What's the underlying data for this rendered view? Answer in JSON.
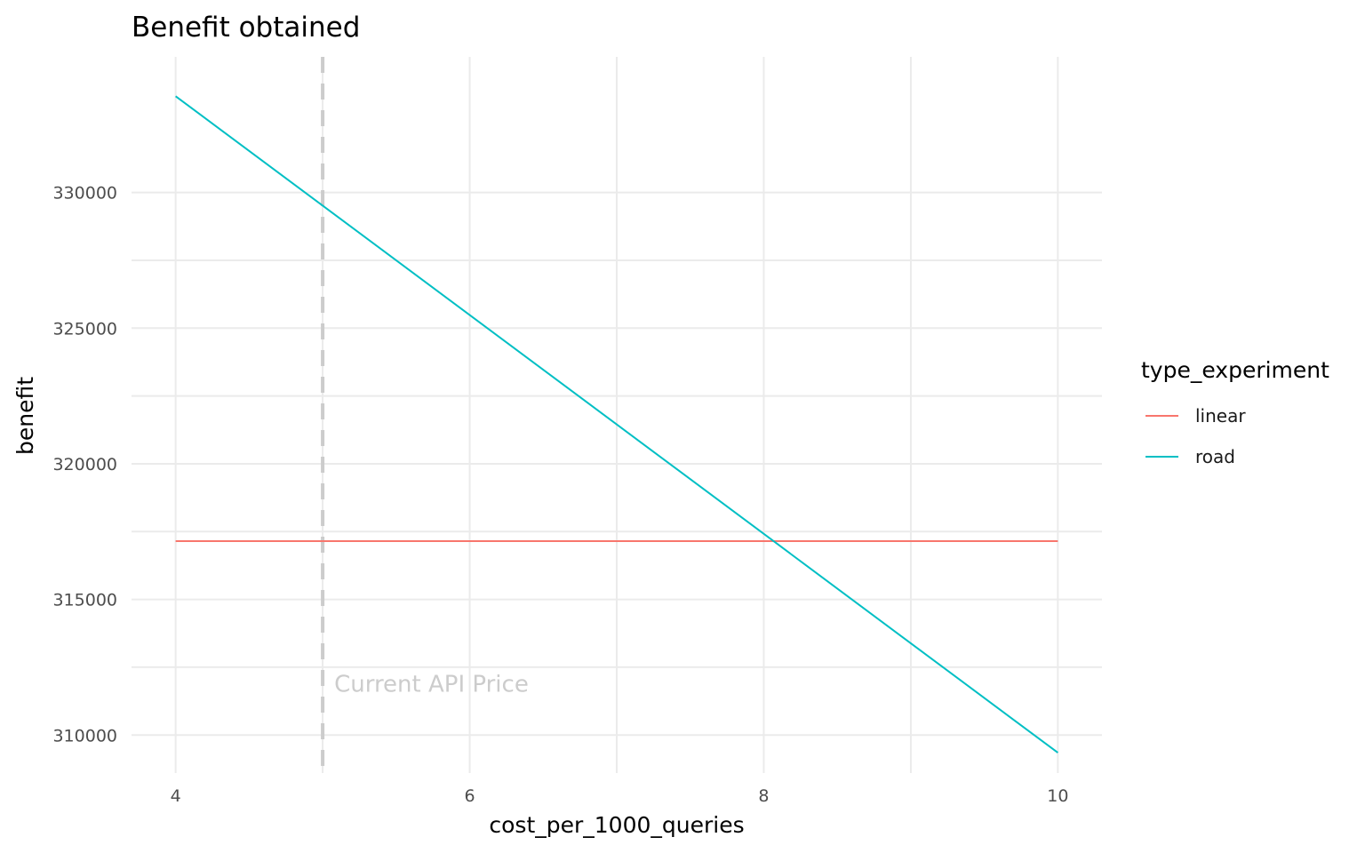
{
  "chart_data": {
    "type": "line",
    "title": "Benefit obtained",
    "xlabel": "cost_per_1000_queries",
    "ylabel": "benefit",
    "xlim": [
      3.7,
      10.3
    ],
    "ylim": [
      308600,
      335000
    ],
    "x_ticks": [
      4,
      6,
      8,
      10
    ],
    "x_tick_labels": [
      "4",
      "6",
      "8",
      "10"
    ],
    "y_ticks": [
      310000,
      315000,
      320000,
      325000,
      330000
    ],
    "y_tick_labels": [
      "310000",
      "315000",
      "320000",
      "325000",
      "330000"
    ],
    "grid": true,
    "legend": {
      "title": "type_experiment",
      "position": "right"
    },
    "series": [
      {
        "name": "linear",
        "color": "#F8766D",
        "x": [
          4,
          10
        ],
        "y": [
          317150,
          317150
        ]
      },
      {
        "name": "road",
        "color": "#00BFC4",
        "x": [
          4,
          10
        ],
        "y": [
          333550,
          309350
        ]
      }
    ],
    "reference_line": {
      "x": 5,
      "style": "dashed",
      "color": "#cccccc",
      "label": "Current API Price",
      "label_y": 311900
    }
  }
}
